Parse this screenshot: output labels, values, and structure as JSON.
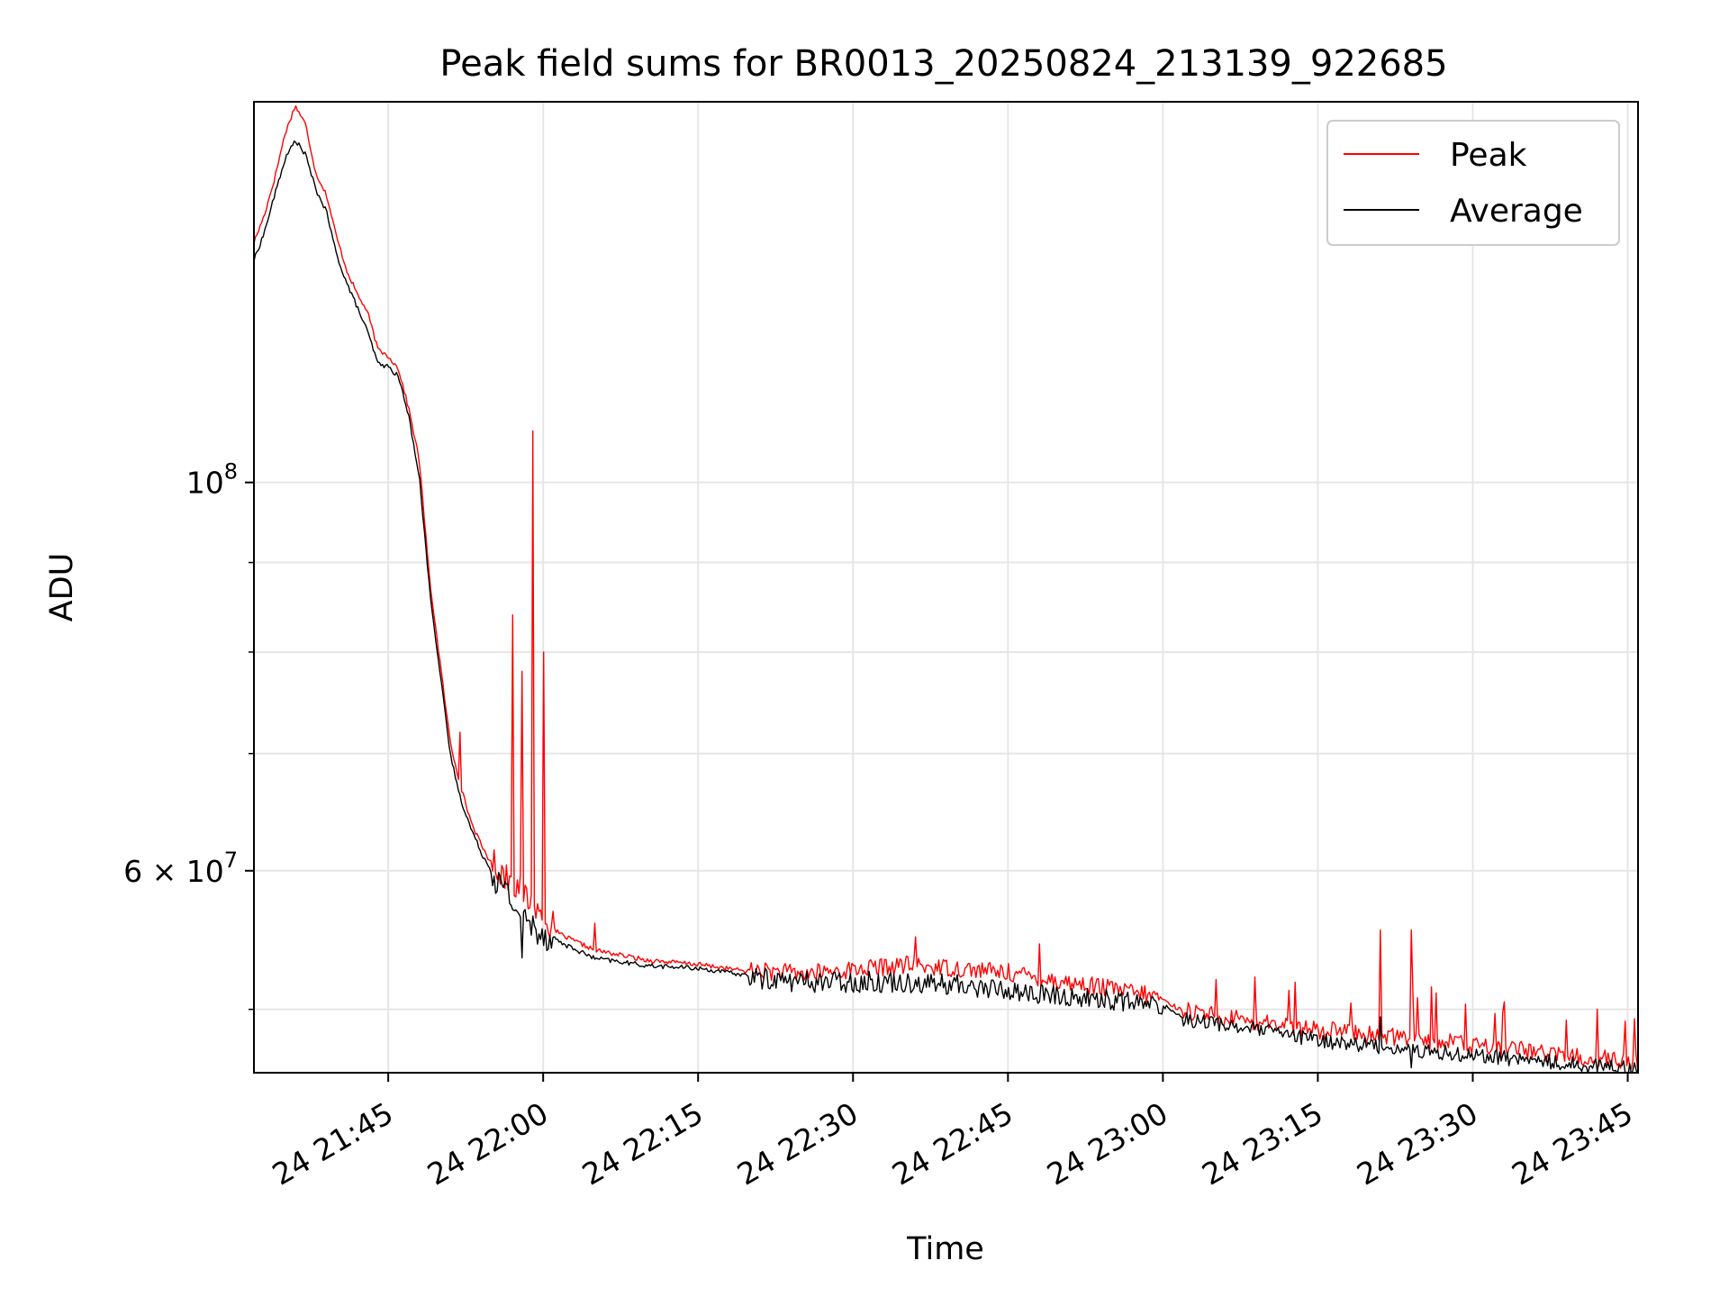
{
  "chart_data": {
    "type": "line",
    "title": "Peak field sums for BR0013_20250824_213139_922685",
    "xlabel": "Time",
    "ylabel": "ADU",
    "y_scale": "log",
    "ylim": [
      46000000,
      165000000
    ],
    "xlim": [
      "2025-08-24 21:32",
      "2025-08-24 23:46"
    ],
    "x_ticks": [
      {
        "value": "2025-08-24 21:45",
        "label": "24 21:45"
      },
      {
        "value": "2025-08-24 22:00",
        "label": "24 22:00"
      },
      {
        "value": "2025-08-24 22:15",
        "label": "24 22:15"
      },
      {
        "value": "2025-08-24 22:30",
        "label": "24 22:30"
      },
      {
        "value": "2025-08-24 22:45",
        "label": "24 22:45"
      },
      {
        "value": "2025-08-24 23:00",
        "label": "24 23:00"
      },
      {
        "value": "2025-08-24 23:15",
        "label": "24 23:15"
      },
      {
        "value": "2025-08-24 23:30",
        "label": "24 23:30"
      },
      {
        "value": "2025-08-24 23:45",
        "label": "24 23:45"
      }
    ],
    "y_ticks": [
      {
        "value": 100000000,
        "base": "10",
        "exp": "8",
        "mant": ""
      },
      {
        "value": 60000000,
        "base": "10",
        "exp": "7",
        "mant": "6 × "
      }
    ],
    "y_minor_ticks": [
      50000000,
      70000000,
      80000000,
      90000000
    ],
    "grid": true,
    "legend": {
      "placement": "top-right"
    },
    "series": [
      {
        "name": "Peak",
        "color": "#ff0000",
        "points": [
          [
            "2025-08-24 21:32",
            137000000
          ],
          [
            "2025-08-24 21:33",
            142000000
          ],
          [
            "2025-08-24 21:34",
            149000000
          ],
          [
            "2025-08-24 21:35",
            158000000
          ],
          [
            "2025-08-24 21:36",
            164000000
          ],
          [
            "2025-08-24 21:37",
            160000000
          ],
          [
            "2025-08-24 21:38",
            150000000
          ],
          [
            "2025-08-24 21:39",
            146000000
          ],
          [
            "2025-08-24 21:40",
            138000000
          ],
          [
            "2025-08-24 21:41",
            132000000
          ],
          [
            "2025-08-24 21:42",
            128000000
          ],
          [
            "2025-08-24 21:43",
            125000000
          ],
          [
            "2025-08-24 21:44",
            119000000
          ],
          [
            "2025-08-24 21:45",
            118000000
          ],
          [
            "2025-08-24 21:46",
            116000000
          ],
          [
            "2025-08-24 21:47",
            110000000
          ],
          [
            "2025-08-24 21:48",
            103000000
          ],
          [
            "2025-08-24 21:49",
            88000000
          ],
          [
            "2025-08-24 21:50",
            79000000
          ],
          [
            "2025-08-24 21:51",
            71000000
          ],
          [
            "2025-08-24 21:52",
            67000000
          ],
          [
            "2025-08-24 21:53",
            64000000
          ],
          [
            "2025-08-24 21:54",
            62000000
          ],
          [
            "2025-08-24 21:55",
            60500000
          ],
          [
            "2025-08-24 21:56",
            59500000
          ],
          [
            "2025-08-24 21:57",
            59000000
          ],
          [
            "2025-08-24 21:58",
            58000000
          ],
          [
            "2025-08-24 21:59",
            57000000
          ],
          [
            "2025-08-24 22:00",
            56000000
          ],
          [
            "2025-08-24 22:02",
            55000000
          ],
          [
            "2025-08-24 22:05",
            54000000
          ],
          [
            "2025-08-24 22:10",
            53300000
          ],
          [
            "2025-08-24 22:15",
            53000000
          ],
          [
            "2025-08-24 22:20",
            52500000
          ],
          [
            "2025-08-24 22:25",
            52200000
          ],
          [
            "2025-08-24 22:30",
            52500000
          ],
          [
            "2025-08-24 22:35",
            52800000
          ],
          [
            "2025-08-24 22:40",
            52600000
          ],
          [
            "2025-08-24 22:45",
            52300000
          ],
          [
            "2025-08-24 22:50",
            51700000
          ],
          [
            "2025-08-24 22:55",
            51200000
          ],
          [
            "2025-08-24 23:00",
            50600000
          ],
          [
            "2025-08-24 23:02",
            49800000
          ],
          [
            "2025-08-24 23:05",
            49400000
          ],
          [
            "2025-08-24 23:10",
            48900000
          ],
          [
            "2025-08-24 23:15",
            48500000
          ],
          [
            "2025-08-24 23:20",
            48200000
          ],
          [
            "2025-08-24 23:25",
            47900000
          ],
          [
            "2025-08-24 23:30",
            47500000
          ],
          [
            "2025-08-24 23:35",
            47200000
          ],
          [
            "2025-08-24 23:40",
            46800000
          ],
          [
            "2025-08-24 23:45",
            46600000
          ]
        ],
        "spikes": [
          [
            "2025-08-24 21:52",
            72000000
          ],
          [
            "2025-08-24 21:57",
            84000000
          ],
          [
            "2025-08-24 21:58",
            78000000
          ],
          [
            "2025-08-24 21:59",
            107000000
          ],
          [
            "2025-08-24 22:00",
            80000000
          ],
          [
            "2025-08-24 22:05",
            56000000
          ],
          [
            "2025-08-24 22:36",
            55000000
          ],
          [
            "2025-08-24 22:48",
            54500000
          ],
          [
            "2025-08-24 23:21",
            55500000
          ],
          [
            "2025-08-24 23:24",
            55500000
          ],
          [
            "2025-08-24 23:26",
            51500000
          ],
          [
            "2025-08-24 23:33",
            50500000
          ],
          [
            "2025-08-24 23:42",
            50000000
          ]
        ]
      },
      {
        "name": "Average",
        "color": "#000000",
        "points": [
          [
            "2025-08-24 21:32",
            134000000
          ],
          [
            "2025-08-24 21:33",
            139000000
          ],
          [
            "2025-08-24 21:34",
            146000000
          ],
          [
            "2025-08-24 21:35",
            153000000
          ],
          [
            "2025-08-24 21:36",
            157000000
          ],
          [
            "2025-08-24 21:37",
            154000000
          ],
          [
            "2025-08-24 21:38",
            147000000
          ],
          [
            "2025-08-24 21:39",
            143000000
          ],
          [
            "2025-08-24 21:40",
            135000000
          ],
          [
            "2025-08-24 21:41",
            130000000
          ],
          [
            "2025-08-24 21:42",
            126000000
          ],
          [
            "2025-08-24 21:43",
            122000000
          ],
          [
            "2025-08-24 21:44",
            117000000
          ],
          [
            "2025-08-24 21:45",
            116500000
          ],
          [
            "2025-08-24 21:46",
            115000000
          ],
          [
            "2025-08-24 21:47",
            109000000
          ],
          [
            "2025-08-24 21:48",
            101000000
          ],
          [
            "2025-08-24 21:49",
            87000000
          ],
          [
            "2025-08-24 21:50",
            78000000
          ],
          [
            "2025-08-24 21:51",
            70000000
          ],
          [
            "2025-08-24 21:52",
            66000000
          ],
          [
            "2025-08-24 21:53",
            63500000
          ],
          [
            "2025-08-24 21:54",
            61500000
          ],
          [
            "2025-08-24 21:55",
            60000000
          ],
          [
            "2025-08-24 21:56",
            59000000
          ],
          [
            "2025-08-24 21:57",
            58000000
          ],
          [
            "2025-08-24 21:58",
            56500000
          ],
          [
            "2025-08-24 21:59",
            56000000
          ],
          [
            "2025-08-24 22:00",
            55500000
          ],
          [
            "2025-08-24 22:02",
            54500000
          ],
          [
            "2025-08-24 22:05",
            53500000
          ],
          [
            "2025-08-24 22:10",
            53000000
          ],
          [
            "2025-08-24 22:15",
            52800000
          ],
          [
            "2025-08-24 22:20",
            52300000
          ],
          [
            "2025-08-24 22:25",
            52000000
          ],
          [
            "2025-08-24 22:30",
            52000000
          ],
          [
            "2025-08-24 22:35",
            52000000
          ],
          [
            "2025-08-24 22:40",
            51800000
          ],
          [
            "2025-08-24 22:45",
            51400000
          ],
          [
            "2025-08-24 22:50",
            51000000
          ],
          [
            "2025-08-24 22:55",
            50800000
          ],
          [
            "2025-08-24 23:00",
            50300000
          ],
          [
            "2025-08-24 23:02",
            49500000
          ],
          [
            "2025-08-24 23:05",
            49200000
          ],
          [
            "2025-08-24 23:10",
            48700000
          ],
          [
            "2025-08-24 23:15",
            48100000
          ],
          [
            "2025-08-24 23:20",
            47800000
          ],
          [
            "2025-08-24 23:25",
            47400000
          ],
          [
            "2025-08-24 23:30",
            47200000
          ],
          [
            "2025-08-24 23:35",
            46900000
          ],
          [
            "2025-08-24 23:40",
            46600000
          ],
          [
            "2025-08-24 23:45",
            46400000
          ]
        ],
        "spikes": [
          [
            "2025-08-24 21:57",
            57000000
          ],
          [
            "2025-08-24 21:58",
            53500000
          ],
          [
            "2025-08-24 22:39",
            51000000
          ],
          [
            "2025-08-24 22:48",
            50500000
          ],
          [
            "2025-08-24 22:55",
            50000000
          ],
          [
            "2025-08-24 23:21",
            49500000
          ],
          [
            "2025-08-24 23:24",
            46300000
          ]
        ]
      }
    ]
  }
}
